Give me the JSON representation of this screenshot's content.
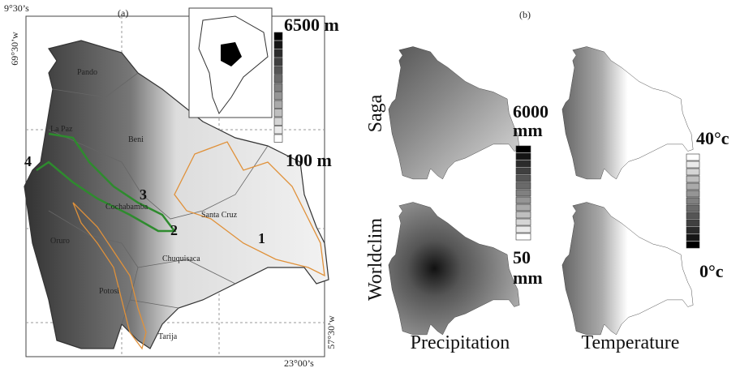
{
  "panel_a": {
    "label": "(a)",
    "coords": {
      "top_lat": "9°30’s",
      "left_lon": "69°30’w",
      "right_lon": "57°30’w",
      "bottom_lat": "23°00’s"
    },
    "legend": {
      "max": "6500 m",
      "min": "100 m"
    },
    "departments": [
      "Pando",
      "La Paz",
      "Beni",
      "Cochabamba",
      "Santa Cruz",
      "Oruro",
      "Potosi",
      "Chuquisaca",
      "Tarija"
    ],
    "sites": [
      "1",
      "2",
      "3",
      "4"
    ]
  },
  "panel_b": {
    "label": "(b)",
    "rows": [
      "Saga",
      "Worldclim"
    ],
    "columns": [
      "Precipitation",
      "Temperature"
    ],
    "precip_legend": {
      "max": [
        "6000",
        "mm"
      ],
      "min": [
        "50",
        "mm"
      ]
    },
    "temp_legend": {
      "max": "40°c",
      "min": "0°c"
    }
  }
}
